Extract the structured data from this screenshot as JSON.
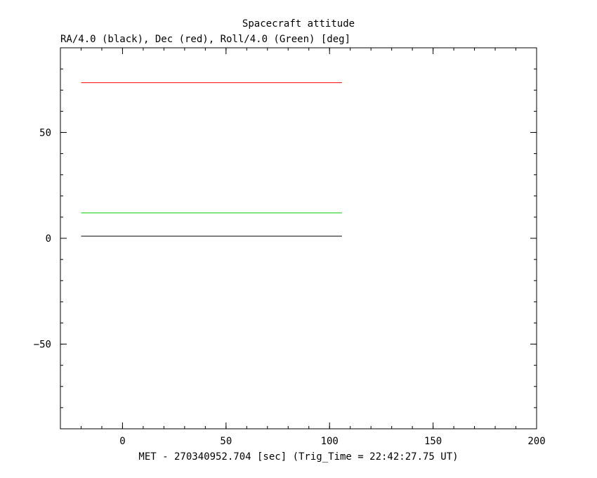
{
  "chart_data": {
    "type": "line",
    "title": "Spacecraft attitude",
    "subtitle": "RA/4.0 (black), Dec (red), Roll/4.0 (Green) [deg]",
    "xlabel": "MET - 270340952.704 [sec] (Trig_Time = 22:42:27.75 UT)",
    "ylabel": "",
    "xlim": [
      -30,
      200
    ],
    "ylim": [
      -90,
      90
    ],
    "x_ticks": [
      0,
      50,
      100,
      150,
      200
    ],
    "x_tick_labels": [
      "0",
      "50",
      "100",
      "150",
      "200"
    ],
    "y_ticks": [
      -50,
      0,
      50
    ],
    "y_tick_labels": [
      "−50",
      "0",
      "50"
    ],
    "x_minor_step": 10,
    "y_minor_step": 10,
    "grid": false,
    "series": [
      {
        "color": "#000000",
        "x": [
          -20,
          106
        ],
        "y": [
          1,
          1
        ]
      },
      {
        "color": "#ff0000",
        "x": [
          -20,
          106
        ],
        "y": [
          73.5,
          73.5
        ]
      },
      {
        "color": "#00cc00",
        "x": [
          -20,
          106
        ],
        "y": [
          12,
          12
        ]
      }
    ]
  }
}
